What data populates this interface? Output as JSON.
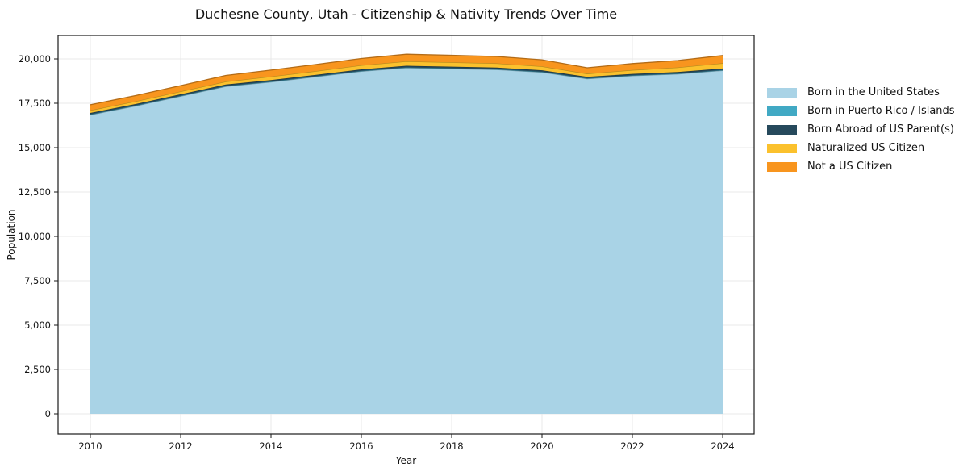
{
  "chart_data": {
    "type": "area",
    "stacked": true,
    "title": "Duchesne County, Utah - Citizenship & Nativity Trends Over Time",
    "xlabel": "Year",
    "ylabel": "Population",
    "x": [
      2010,
      2011,
      2012,
      2013,
      2014,
      2015,
      2016,
      2017,
      2018,
      2019,
      2020,
      2021,
      2022,
      2023,
      2024
    ],
    "series": [
      {
        "name": "Born in the United States",
        "color": "#A9D3E6",
        "values": [
          16850,
          17350,
          17900,
          18450,
          18700,
          19000,
          19300,
          19500,
          19450,
          19400,
          19250,
          18880,
          19050,
          19150,
          19350
        ]
      },
      {
        "name": "Born in Puerto Rico / Islands",
        "color": "#41A9C4",
        "values": [
          25,
          25,
          25,
          25,
          25,
          25,
          25,
          25,
          25,
          25,
          25,
          25,
          25,
          25,
          25
        ]
      },
      {
        "name": "Born Abroad of US Parent(s)",
        "color": "#26495C",
        "values": [
          80,
          80,
          80,
          80,
          80,
          80,
          85,
          90,
          90,
          85,
          85,
          80,
          80,
          85,
          85
        ]
      },
      {
        "name": "Naturalized US Citizen",
        "color": "#FBC12D",
        "values": [
          150,
          155,
          160,
          170,
          200,
          210,
          230,
          250,
          245,
          240,
          220,
          185,
          220,
          260,
          300
        ]
      },
      {
        "name": "Not a US Citizen",
        "color": "#F8951E",
        "values": [
          310,
          320,
          330,
          345,
          365,
          370,
          385,
          400,
          395,
          385,
          370,
          330,
          360,
          390,
          430
        ]
      }
    ],
    "xticks": [
      2010,
      2012,
      2014,
      2016,
      2018,
      2020,
      2022,
      2024
    ],
    "xtick_labels": [
      "2010",
      "2012",
      "2014",
      "2016",
      "2018",
      "2020",
      "2022",
      "2024"
    ],
    "yticks": [
      0,
      2500,
      5000,
      7500,
      10000,
      12500,
      15000,
      17500,
      20000
    ],
    "ytick_labels": [
      "0",
      "2,500",
      "5,000",
      "7,500",
      "10,000",
      "12,500",
      "15,000",
      "17,500",
      "20,000"
    ],
    "xlim": [
      2009.3,
      2024.7
    ],
    "ylim": [
      0,
      21300
    ],
    "grid": true,
    "legend_position": "right-outside",
    "colors": {
      "grid": "#e9e9e9",
      "spine": "#1a1a1a",
      "text": "#141414",
      "background": "#ffffff"
    }
  }
}
